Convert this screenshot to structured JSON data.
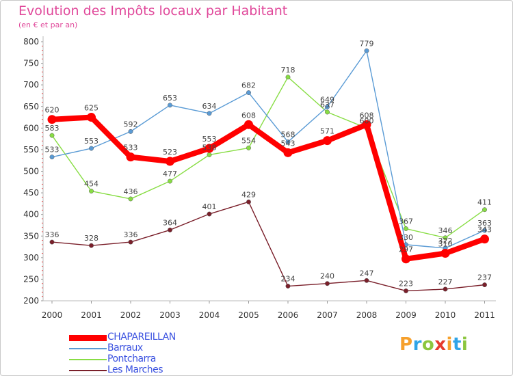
{
  "header": {
    "title": "Evolution des Impôts locaux par Habitant",
    "subtitle": "(en € et par an)"
  },
  "chart_data": {
    "type": "line",
    "title": "Evolution des Impôts locaux par Habitant",
    "subtitle": "(en € et par an)",
    "xlabel": "",
    "ylabel": "",
    "categories": [
      "2000",
      "2001",
      "2002",
      "2003",
      "2004",
      "2005",
      "2006",
      "2007",
      "2008",
      "2009",
      "2010",
      "2011"
    ],
    "ylim": [
      200,
      800
    ],
    "yticks": [
      200,
      250,
      300,
      350,
      400,
      450,
      500,
      550,
      600,
      650,
      700,
      750,
      800
    ],
    "ytick_labels": [
      "200",
      "250",
      "300",
      "350",
      "400",
      "450",
      "500",
      "550",
      "600",
      "650",
      "700",
      "750",
      "800"
    ],
    "grid": false,
    "legend_position": "bottom-left",
    "series": [
      {
        "name": "CHAPAREILLAN",
        "color": "#ff0000",
        "values": [
          620,
          625,
          533,
          523,
          553,
          608,
          543,
          571,
          608,
          297,
          310,
          343
        ],
        "labels": [
          "620",
          "625",
          "533",
          "523",
          "553",
          "608",
          "543",
          "571",
          "608",
          "297",
          "310",
          "343"
        ]
      },
      {
        "name": "Barraux",
        "color": "#5a9bd5",
        "values": [
          533,
          553,
          592,
          653,
          634,
          682,
          568,
          649,
          779,
          330,
          322,
          363
        ],
        "labels": [
          "533",
          "553",
          "592",
          "653",
          "634",
          "682",
          "568",
          "649",
          "779",
          "330",
          "322",
          "363"
        ]
      },
      {
        "name": "Pontcharra",
        "color": "#88dd44",
        "values": [
          583,
          454,
          436,
          477,
          538,
          554,
          718,
          637,
          600,
          367,
          346,
          411
        ],
        "labels": [
          "583",
          "454",
          "436",
          "477",
          "538",
          "554",
          "718",
          "637",
          "600",
          "367",
          "346",
          "411"
        ]
      },
      {
        "name": "Les Marches",
        "color": "#7a1f2a",
        "values": [
          336,
          328,
          336,
          364,
          401,
          429,
          234,
          240,
          247,
          223,
          227,
          237
        ],
        "labels": [
          "336",
          "328",
          "336",
          "364",
          "401",
          "429",
          "234",
          "240",
          "247",
          "223",
          "227",
          "237"
        ]
      }
    ]
  },
  "logo": {
    "text": "Proxiti",
    "letters": [
      {
        "char": "P",
        "color": "#f6a02c"
      },
      {
        "char": "r",
        "color": "#2fa4e7"
      },
      {
        "char": "o",
        "color": "#8cc63f"
      },
      {
        "char": "x",
        "color": "#e63b2e"
      },
      {
        "char": "i",
        "color": "#f6a02c"
      },
      {
        "char": "t",
        "color": "#2fa4e7"
      },
      {
        "char": "i",
        "color": "#8cc63f"
      }
    ]
  }
}
